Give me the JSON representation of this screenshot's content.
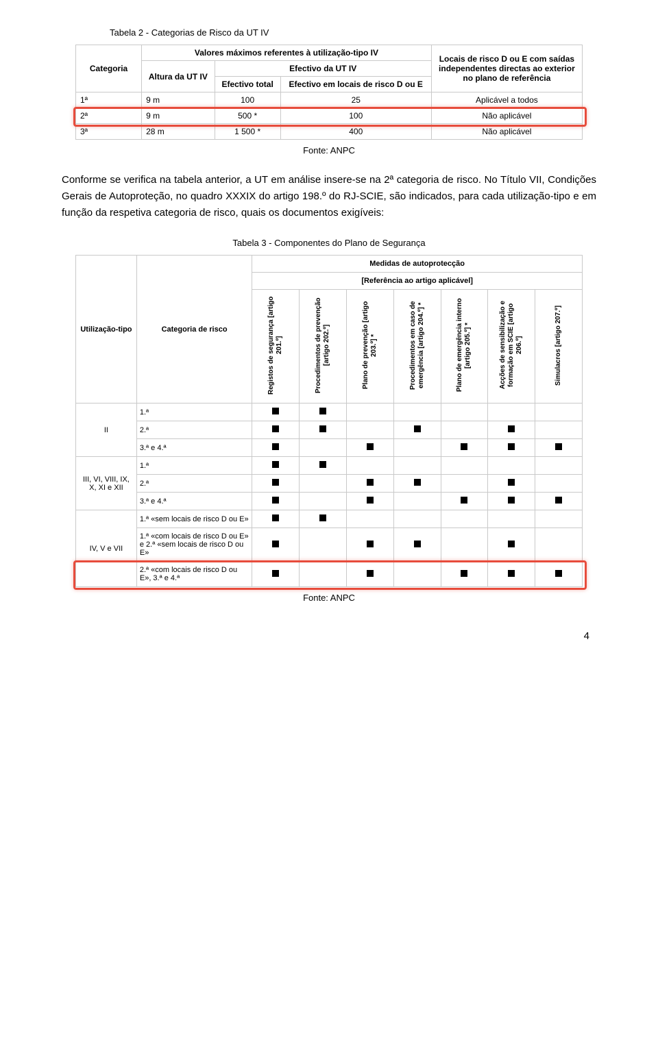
{
  "captions": {
    "table1_title": "Tabela 2 - Categorias de Risco da UT IV",
    "table1_source": "Fonte: ANPC",
    "table2_title": "Tabela 3 - Componentes do Plano de Segurança",
    "table2_source": "Fonte: ANPC"
  },
  "body_paragraph": "Conforme se verifica na tabela anterior, a UT em análise insere-se na 2ª categoria de risco. No Título VII, Condições Gerais de Autoproteção, no quadro XXXIX do artigo 198.º do RJ-SCIE, são indicados, para cada utilização-tipo e em função da respetiva categoria de risco, quais os documentos exigíveis:",
  "table1": {
    "headers": {
      "categoria": "Categoria",
      "altura": "Altura da UT IV",
      "valores": "Valores máximos referentes à utilização-tipo IV",
      "efectivo": "Efectivo da UT IV",
      "ef_total": "Efectivo total",
      "ef_risco": "Efectivo em locais de risco D ou E",
      "locais": "Locais de risco D ou E com saídas independentes directas ao exterior no plano de referência"
    },
    "rows": [
      {
        "cat": "1ª",
        "alt": "9 m",
        "et": "100",
        "el": "25",
        "loc": "Aplicável a todos",
        "highlight": false
      },
      {
        "cat": "2ª",
        "alt": "9 m",
        "et": "500 *",
        "el": "100",
        "loc": "Não aplicável",
        "highlight": true
      },
      {
        "cat": "3ª",
        "alt": "28 m",
        "et": "1 500 *",
        "el": "400",
        "loc": "Não aplicável",
        "highlight": false
      }
    ],
    "highlight_color": "#e74c3c"
  },
  "table2": {
    "headers": {
      "medidas": "Medidas de autoprotecção",
      "ref": "[Referência ao artigo aplicável]",
      "utilizacao": "Utilização-tipo",
      "categoria": "Categoria de risco",
      "cols": [
        "Registos de segurança [artigo 201.º]",
        "Procedimentos de prevenção [artigo 202.º]",
        "Plano de prevenção [artigo 203.º] *",
        "Procedimentos em caso de emergência [artigo 204.º] *",
        "Plano de emergência interno [artigo 205.º] *",
        "Acções de sensibilização e formação em SCIE [artigo 206.º]",
        "Simulacros [artigo 207.º]"
      ]
    },
    "groups": [
      {
        "tipo": "II",
        "rows": [
          {
            "cat": "1.ª",
            "v": [
              1,
              1,
              0,
              0,
              0,
              0,
              0
            ],
            "highlight": false
          },
          {
            "cat": "2.ª",
            "v": [
              1,
              1,
              0,
              1,
              0,
              1,
              0
            ],
            "highlight": false
          },
          {
            "cat": "3.ª e 4.ª",
            "v": [
              1,
              0,
              1,
              0,
              1,
              1,
              1
            ],
            "highlight": false
          }
        ]
      },
      {
        "tipo": "III, VI, VIII, IX, X, XI e XII",
        "rows": [
          {
            "cat": "1.ª",
            "v": [
              1,
              1,
              0,
              0,
              0,
              0,
              0
            ],
            "highlight": false
          },
          {
            "cat": "2.ª",
            "v": [
              1,
              0,
              1,
              1,
              0,
              1,
              0
            ],
            "highlight": false
          },
          {
            "cat": "3.ª e 4.ª",
            "v": [
              1,
              0,
              1,
              0,
              1,
              1,
              1
            ],
            "highlight": false
          }
        ]
      },
      {
        "tipo": "IV, V e VII",
        "rows": [
          {
            "cat": "1.ª «sem locais de risco D ou E»",
            "v": [
              1,
              1,
              0,
              0,
              0,
              0,
              0
            ],
            "highlight": false
          },
          {
            "cat": "1.ª «com locais de risco D ou E» e 2.ª «sem locais de risco D ou E»",
            "v": [
              1,
              0,
              1,
              1,
              0,
              1,
              0
            ],
            "highlight": false
          },
          {
            "cat": "2.ª «com locais de risco D ou E», 3.ª e 4.ª",
            "v": [
              1,
              0,
              1,
              0,
              1,
              1,
              1
            ],
            "highlight": true
          }
        ]
      }
    ],
    "highlight_color": "#e74c3c"
  },
  "page_number": "4"
}
